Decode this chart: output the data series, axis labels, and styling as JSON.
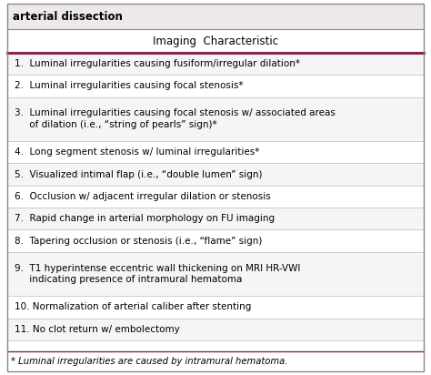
{
  "title": "arterial dissection",
  "column_header": "Imaging  Characteristic",
  "rows": [
    {
      "text": "1.  Luminal irregularities causing fusiform/irregular dilation*",
      "lines": 1
    },
    {
      "text": "2.  Luminal irregularities causing focal stenosis*",
      "lines": 1
    },
    {
      "text": "3.  Luminal irregularities causing focal stenosis w/ associated areas\n     of dilation (i.e., “string of pearls” sign)*",
      "lines": 2
    },
    {
      "text": "4.  Long segment stenosis w/ luminal irregularities*",
      "lines": 1
    },
    {
      "text": "5.  Visualized intimal flap (i.e., “double lumen” sign)",
      "lines": 1
    },
    {
      "text": "6.  Occlusion w/ adjacent irregular dilation or stenosis",
      "lines": 1
    },
    {
      "text": "7.  Rapid change in arterial morphology on FU imaging",
      "lines": 1
    },
    {
      "text": "8.  Tapering occlusion or stenosis (i.e., “flame” sign)",
      "lines": 1
    },
    {
      "text": "9.  T1 hyperintense eccentric wall thickening on MRI HR-VWI\n     indicating presence of intramural hematoma",
      "lines": 2
    },
    {
      "text": "10. Normalization of arterial caliber after stenting",
      "lines": 1
    },
    {
      "text": "11. No clot return w/ embolectomy",
      "lines": 1
    }
  ],
  "footnote": "* Luminal irregularities are caused by intramural hematoma.",
  "bg_color": "#ffffff",
  "title_bg": "#ede8ec",
  "border_color": "#888888",
  "divider_color": "#bbbbbb",
  "accent_color": "#8B2252",
  "title_fontsize": 8.5,
  "header_fontsize": 8.5,
  "row_fontsize": 7.5,
  "footnote_fontsize": 7.2
}
